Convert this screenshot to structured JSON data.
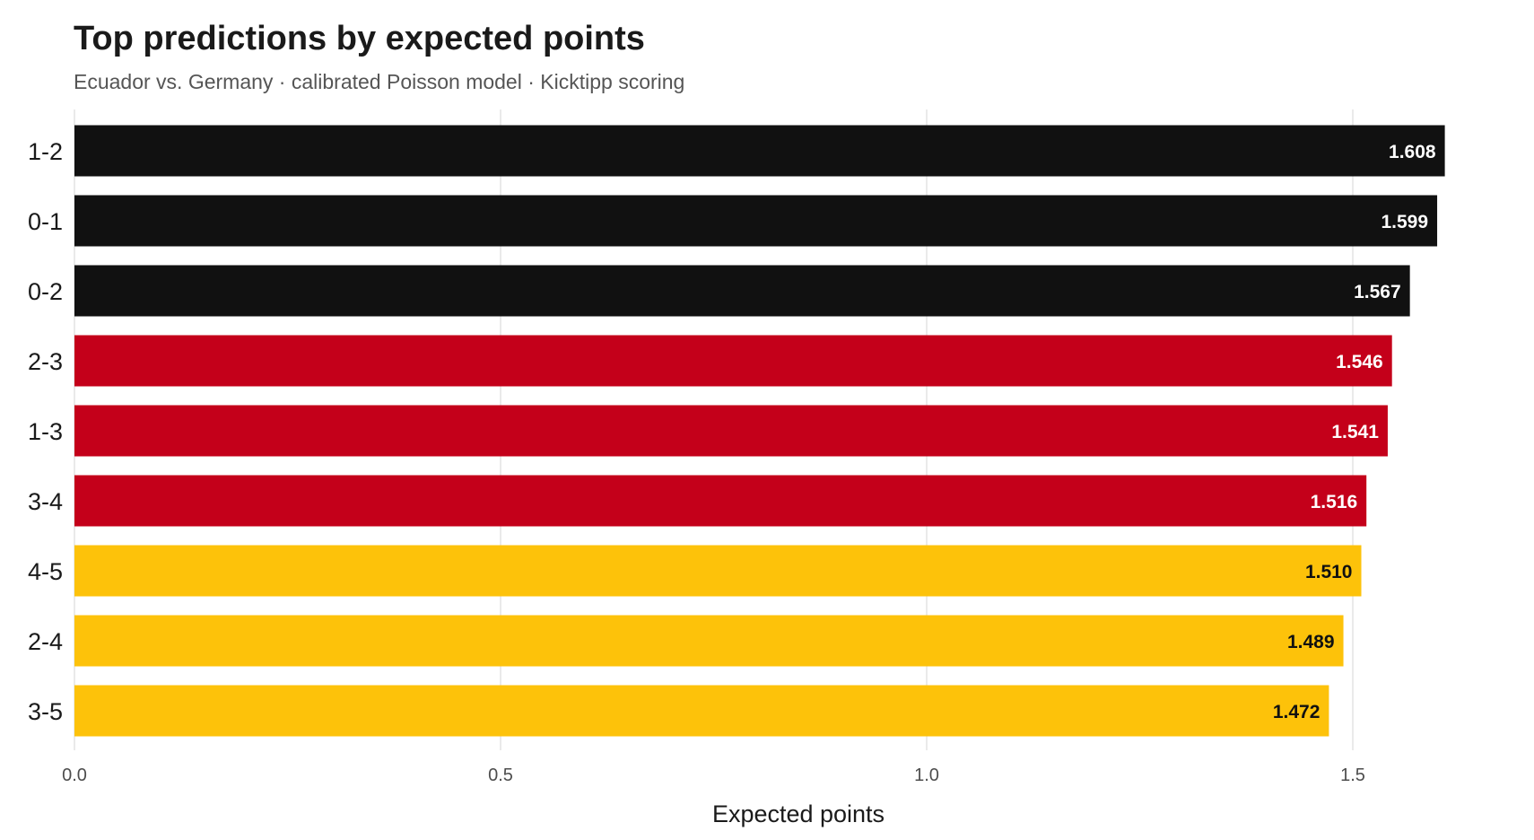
{
  "title": "Top predictions by expected points",
  "subtitle": "Ecuador vs. Germany · calibrated Poisson model · Kicktipp scoring",
  "chart_data": {
    "type": "bar",
    "orientation": "horizontal",
    "title": "Top predictions by expected points",
    "subtitle": "Ecuador vs. Germany · calibrated Poisson model · Kicktipp scoring",
    "xlabel": "Expected points",
    "ylabel": "",
    "xlim": [
      0,
      1.65
    ],
    "xticks": [
      0.0,
      0.5,
      1.0,
      1.5
    ],
    "xtick_labels": [
      "0.0",
      "0.5",
      "1.0",
      "1.5"
    ],
    "grid": "vertical",
    "categories": [
      "1-2",
      "0-1",
      "0-2",
      "2-3",
      "1-3",
      "3-4",
      "4-5",
      "2-4",
      "3-5"
    ],
    "values": [
      1.608,
      1.599,
      1.567,
      1.546,
      1.541,
      1.516,
      1.51,
      1.489,
      1.472
    ],
    "value_labels": [
      "1.608",
      "1.599",
      "1.567",
      "1.546",
      "1.541",
      "1.516",
      "1.510",
      "1.489",
      "1.472"
    ],
    "bar_colors": [
      "#111111",
      "#111111",
      "#111111",
      "#c4001a",
      "#c4001a",
      "#c4001a",
      "#fdc20a",
      "#fdc20a",
      "#fdc20a"
    ],
    "label_colors": [
      "#ffffff",
      "#ffffff",
      "#ffffff",
      "#ffffff",
      "#ffffff",
      "#ffffff",
      "#111111",
      "#111111",
      "#111111"
    ]
  }
}
